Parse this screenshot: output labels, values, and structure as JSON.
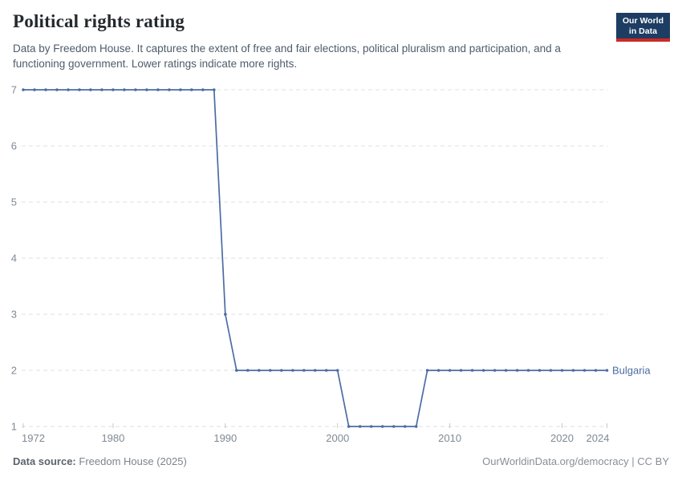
{
  "header": {
    "title": "Political rights rating",
    "subtitle": "Data by Freedom House. It captures the extent of free and fair elections, political pluralism and participation, and a functioning government. Lower ratings indicate more rights.",
    "logo": {
      "line1": "Our World",
      "line2": "in Data"
    }
  },
  "chart_data": {
    "type": "line",
    "title": "Political rights rating",
    "xlabel": "",
    "ylabel": "",
    "x_range": [
      1972,
      2024
    ],
    "y_range": [
      1,
      7
    ],
    "x_ticks": [
      1972,
      1980,
      1990,
      2000,
      2010,
      2020,
      2024
    ],
    "y_ticks": [
      1,
      2,
      3,
      4,
      5,
      6,
      7
    ],
    "grid": "horizontal-dashed",
    "legend_position": "end-of-line",
    "series": [
      {
        "name": "Bulgaria",
        "color": "#4c6ca3",
        "points": [
          [
            1972,
            7
          ],
          [
            1973,
            7
          ],
          [
            1974,
            7
          ],
          [
            1975,
            7
          ],
          [
            1976,
            7
          ],
          [
            1977,
            7
          ],
          [
            1978,
            7
          ],
          [
            1979,
            7
          ],
          [
            1980,
            7
          ],
          [
            1981,
            7
          ],
          [
            1982,
            7
          ],
          [
            1983,
            7
          ],
          [
            1984,
            7
          ],
          [
            1985,
            7
          ],
          [
            1986,
            7
          ],
          [
            1987,
            7
          ],
          [
            1988,
            7
          ],
          [
            1989,
            7
          ],
          [
            1990,
            3
          ],
          [
            1991,
            2
          ],
          [
            1992,
            2
          ],
          [
            1993,
            2
          ],
          [
            1994,
            2
          ],
          [
            1995,
            2
          ],
          [
            1996,
            2
          ],
          [
            1997,
            2
          ],
          [
            1998,
            2
          ],
          [
            1999,
            2
          ],
          [
            2000,
            2
          ],
          [
            2001,
            1
          ],
          [
            2002,
            1
          ],
          [
            2003,
            1
          ],
          [
            2004,
            1
          ],
          [
            2005,
            1
          ],
          [
            2006,
            1
          ],
          [
            2007,
            1
          ],
          [
            2008,
            2
          ],
          [
            2009,
            2
          ],
          [
            2010,
            2
          ],
          [
            2011,
            2
          ],
          [
            2012,
            2
          ],
          [
            2013,
            2
          ],
          [
            2014,
            2
          ],
          [
            2015,
            2
          ],
          [
            2016,
            2
          ],
          [
            2017,
            2
          ],
          [
            2018,
            2
          ],
          [
            2019,
            2
          ],
          [
            2020,
            2
          ],
          [
            2021,
            2
          ],
          [
            2022,
            2
          ],
          [
            2023,
            2
          ],
          [
            2024,
            2
          ]
        ]
      }
    ]
  },
  "colors": {
    "line": "#4c6ca3",
    "grid": "#dbe0e5",
    "tick": "#c2c8ce",
    "axis_label": "#7f8a94",
    "logo_bg": "#1d3d63",
    "logo_accent": "#cc2a23"
  },
  "footer": {
    "source_label": "Data source:",
    "source_value": "Freedom House (2025)",
    "credit": "OurWorldinData.org/democracy | CC BY"
  }
}
